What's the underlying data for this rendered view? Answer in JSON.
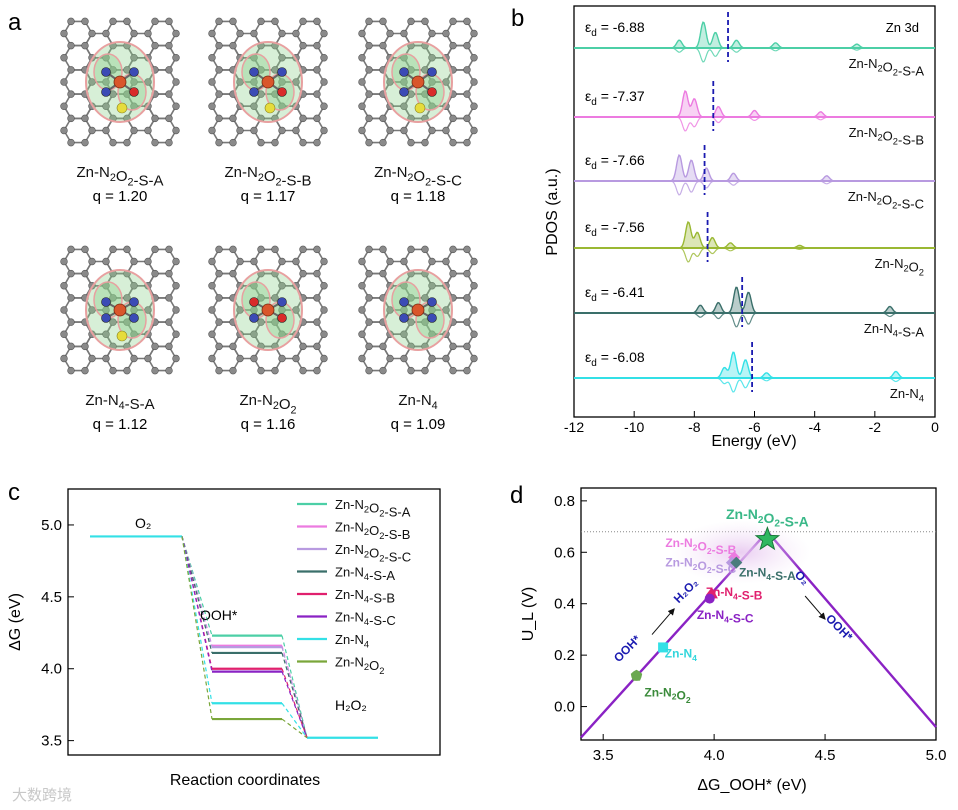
{
  "panel_labels": {
    "a": "a",
    "b": "b",
    "c": "c",
    "d": "d"
  },
  "watermark": "大数跨境",
  "panel_a": {
    "structures": [
      {
        "name": "Zn-N2O2-S-A",
        "q": "q = 1.20",
        "pattern": "s2"
      },
      {
        "name": "Zn-N2O2-S-B",
        "q": "q = 1.17",
        "pattern": "s2"
      },
      {
        "name": "Zn-N2O2-S-C",
        "q": "q = 1.18",
        "pattern": "s2"
      },
      {
        "name": "Zn-N4-S-A",
        "q": "q = 1.12",
        "pattern": "n4s"
      },
      {
        "name": "Zn-N2O2",
        "q": "q = 1.16",
        "pattern": "n2o2"
      },
      {
        "name": "Zn-N4",
        "q": "q = 1.09",
        "pattern": "n4"
      }
    ],
    "colors": {
      "carbon": "#8a8a8a",
      "zn": "#d9562b",
      "n": "#3b4bb5",
      "o": "#d92b2b",
      "s": "#e6dc3c",
      "cloud_green": "#8bd08b",
      "cloud_pink": "#e8a0a0"
    }
  },
  "chart_data": [
    {
      "panel": "b",
      "type": "line",
      "xlabel": "Energy (eV)",
      "ylabel": "PDOS (a.u.)",
      "xlim": [
        -12,
        0
      ],
      "xticks": [
        -12,
        -10,
        -8,
        -6,
        -4,
        -2,
        0
      ],
      "orbital_label": "Zn 3d",
      "series": [
        {
          "name": "Zn-N2O2-S-A",
          "eps_label": "-6.88",
          "eps_d": -6.88,
          "color": "#4ccfa6",
          "peaks": [
            [
              -7.7,
              1.0
            ],
            [
              -7.3,
              0.6
            ],
            [
              -8.5,
              0.3
            ],
            [
              -6.6,
              0.3
            ],
            [
              -5.3,
              0.2
            ],
            [
              -2.6,
              0.15
            ]
          ]
        },
        {
          "name": "Zn-N2O2-S-B",
          "eps_label": "-7.37",
          "eps_d": -7.37,
          "color": "#ec7be0",
          "peaks": [
            [
              -8.3,
              1.0
            ],
            [
              -8.0,
              0.7
            ],
            [
              -7.2,
              0.4
            ],
            [
              -6.0,
              0.25
            ],
            [
              -3.8,
              0.2
            ]
          ]
        },
        {
          "name": "Zn-N2O2-S-C",
          "eps_label": "-7.66",
          "eps_d": -7.66,
          "color": "#b89ae0",
          "peaks": [
            [
              -8.5,
              1.0
            ],
            [
              -8.1,
              0.8
            ],
            [
              -7.6,
              0.5
            ],
            [
              -6.7,
              0.3
            ],
            [
              -3.6,
              0.2
            ]
          ]
        },
        {
          "name": "Zn-N2O2",
          "eps_label": "-7.56",
          "eps_d": -7.56,
          "color": "#9ab832",
          "peaks": [
            [
              -8.2,
              1.0
            ],
            [
              -7.9,
              0.6
            ],
            [
              -7.4,
              0.4
            ],
            [
              -6.8,
              0.2
            ],
            [
              -4.5,
              0.1
            ]
          ]
        },
        {
          "name": "Zn-N4-S-A",
          "eps_label": "-6.41",
          "eps_d": -6.41,
          "color": "#3a6f6a",
          "peaks": [
            [
              -6.6,
              1.0
            ],
            [
              -6.2,
              0.8
            ],
            [
              -7.2,
              0.4
            ],
            [
              -7.8,
              0.3
            ],
            [
              -1.5,
              0.25
            ]
          ]
        },
        {
          "name": "Zn-N4",
          "eps_label": "-6.08",
          "eps_d": -6.08,
          "color": "#33e0e6",
          "peaks": [
            [
              -6.7,
              1.0
            ],
            [
              -6.3,
              0.7
            ],
            [
              -7.0,
              0.4
            ],
            [
              -5.6,
              0.2
            ],
            [
              -1.3,
              0.25
            ]
          ]
        }
      ]
    },
    {
      "panel": "c",
      "type": "line",
      "ylabel": "ΔG (eV)",
      "xlabel": "Reaction coordinates",
      "ylim": [
        3.4,
        5.25
      ],
      "yticks": [
        3.5,
        4.0,
        4.5,
        5.0
      ],
      "levels": [
        "O2",
        "OOH*",
        "H2O2"
      ],
      "level_labels": {
        "o2": "O₂",
        "ooh": "OOH*",
        "h2o2": "H₂O₂"
      },
      "o2_energy": 4.92,
      "h2o2_energy": 3.52,
      "series": [
        {
          "name": "Zn-N2O2-S-A",
          "ooh": 4.23,
          "color": "#4ccfa6"
        },
        {
          "name": "Zn-N2O2-S-B",
          "ooh": 4.16,
          "color": "#ec7be0"
        },
        {
          "name": "Zn-N2O2-S-C",
          "ooh": 4.15,
          "color": "#b89ae0"
        },
        {
          "name": "Zn-N4-S-A",
          "ooh": 4.11,
          "color": "#3a6f6a"
        },
        {
          "name": "Zn-N4-S-B",
          "ooh": 4.0,
          "color": "#e0206e"
        },
        {
          "name": "Zn-N4-S-C",
          "ooh": 3.98,
          "color": "#8a22c4"
        },
        {
          "name": "Zn-N4",
          "ooh": 3.76,
          "color": "#33e0e6"
        },
        {
          "name": "Zn-N2O2",
          "ooh": 3.65,
          "color": "#7aa63a"
        }
      ]
    },
    {
      "panel": "d",
      "type": "scatter",
      "xlabel": "ΔG_OOH* (eV)",
      "ylabel": "U_L (V)",
      "xlim": [
        3.4,
        5.0
      ],
      "ylim": [
        -0.13,
        0.85
      ],
      "xticks": [
        3.5,
        4.0,
        4.5,
        5.0
      ],
      "yticks": [
        0.0,
        0.2,
        0.4,
        0.6,
        0.8
      ],
      "equilibrium": 0.68,
      "volcano": [
        [
          3.4,
          -0.12
        ],
        [
          4.24,
          0.68
        ],
        [
          5.0,
          -0.08
        ]
      ],
      "arrow_left_label": "OOH* → H₂O₂",
      "arrow_right_label": "O₂ → OOH*",
      "points": [
        {
          "name": "Zn-N2O2-S-A",
          "x": 4.24,
          "y": 0.65,
          "marker": "star",
          "color": "#2fb860"
        },
        {
          "name": "Zn-N2O2-S-B",
          "x": 4.09,
          "y": 0.58,
          "marker": "diamond",
          "color": "#ec7be0"
        },
        {
          "name": "Zn-N2O2-S-C",
          "x": 4.08,
          "y": 0.56,
          "marker": "diamond",
          "color": "#b89ae0"
        },
        {
          "name": "Zn-N4-S-A",
          "x": 4.1,
          "y": 0.56,
          "marker": "diamond",
          "color": "#4a7c7c"
        },
        {
          "name": "Zn-N4-S-B",
          "x": 3.99,
          "y": 0.44,
          "marker": "triangle",
          "color": "#e0206e"
        },
        {
          "name": "Zn-N4-S-C",
          "x": 3.98,
          "y": 0.42,
          "marker": "circle",
          "color": "#8a22c4"
        },
        {
          "name": "Zn-N4",
          "x": 3.77,
          "y": 0.23,
          "marker": "square",
          "color": "#33e0e6"
        },
        {
          "name": "Zn-N2O2",
          "x": 3.65,
          "y": 0.12,
          "marker": "pentagon",
          "color": "#6aa84f"
        }
      ]
    }
  ]
}
